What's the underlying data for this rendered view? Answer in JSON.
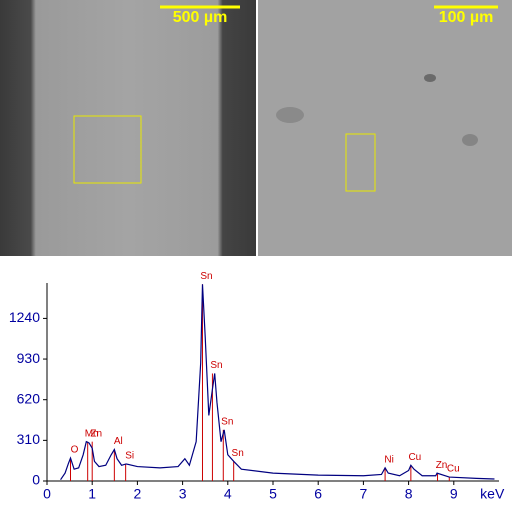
{
  "images": [
    {
      "scale_bar": "500 µm"
    },
    {
      "scale_bar": "100 µm"
    }
  ],
  "chart_data": {
    "type": "line",
    "x_label": "keV",
    "xlim": [
      0,
      10
    ],
    "xticks": [
      0,
      1,
      2,
      3,
      4,
      5,
      6,
      7,
      8,
      9
    ],
    "ylim": [
      0,
      1510
    ],
    "yticks": [
      0,
      310,
      620,
      930,
      1240
    ],
    "series": [
      {
        "color": "#000080",
        "x": [
          0.3,
          0.4,
          0.47,
          0.52,
          0.6,
          0.7,
          0.8,
          0.87,
          0.93,
          1.0,
          1.05,
          1.15,
          1.3,
          1.42,
          1.49,
          1.55,
          1.65,
          1.75,
          2.0,
          2.5,
          2.9,
          3.05,
          3.15,
          3.3,
          3.4,
          3.44,
          3.5,
          3.58,
          3.66,
          3.71,
          3.76,
          3.85,
          3.92,
          4.0,
          4.13,
          4.3,
          5.0,
          6.0,
          7.0,
          7.4,
          7.48,
          7.55,
          7.8,
          8.0,
          8.05,
          8.12,
          8.3,
          8.6,
          8.63,
          8.9,
          9.5,
          9.9
        ],
        "values": [
          10,
          60,
          130,
          175,
          90,
          100,
          200,
          300,
          290,
          250,
          150,
          110,
          120,
          200,
          240,
          170,
          120,
          130,
          110,
          100,
          110,
          170,
          120,
          300,
          900,
          1500,
          1100,
          500,
          700,
          820,
          600,
          300,
          390,
          200,
          150,
          90,
          60,
          45,
          40,
          50,
          100,
          60,
          40,
          80,
          120,
          90,
          40,
          40,
          60,
          30,
          20,
          15
        ]
      }
    ],
    "annotations": [
      {
        "label": "O",
        "x": 0.52,
        "y": 175
      },
      {
        "label": "Mn",
        "x": 0.9,
        "y": 300
      },
      {
        "label": "Zn",
        "x": 1.0,
        "y": 300
      },
      {
        "label": "Al",
        "x": 1.49,
        "y": 240
      },
      {
        "label": "Si",
        "x": 1.74,
        "y": 130
      },
      {
        "label": "Sn",
        "x": 3.44,
        "y": 1500
      },
      {
        "label": "Sn",
        "x": 3.66,
        "y": 820
      },
      {
        "label": "Sn",
        "x": 3.9,
        "y": 390
      },
      {
        "label": "Sn",
        "x": 4.13,
        "y": 150
      },
      {
        "label": "Ni",
        "x": 7.48,
        "y": 100
      },
      {
        "label": "Cu",
        "x": 8.05,
        "y": 120
      },
      {
        "label": "Zn",
        "x": 8.64,
        "y": 60
      },
      {
        "label": "Cu",
        "x": 8.9,
        "y": 30
      }
    ]
  }
}
